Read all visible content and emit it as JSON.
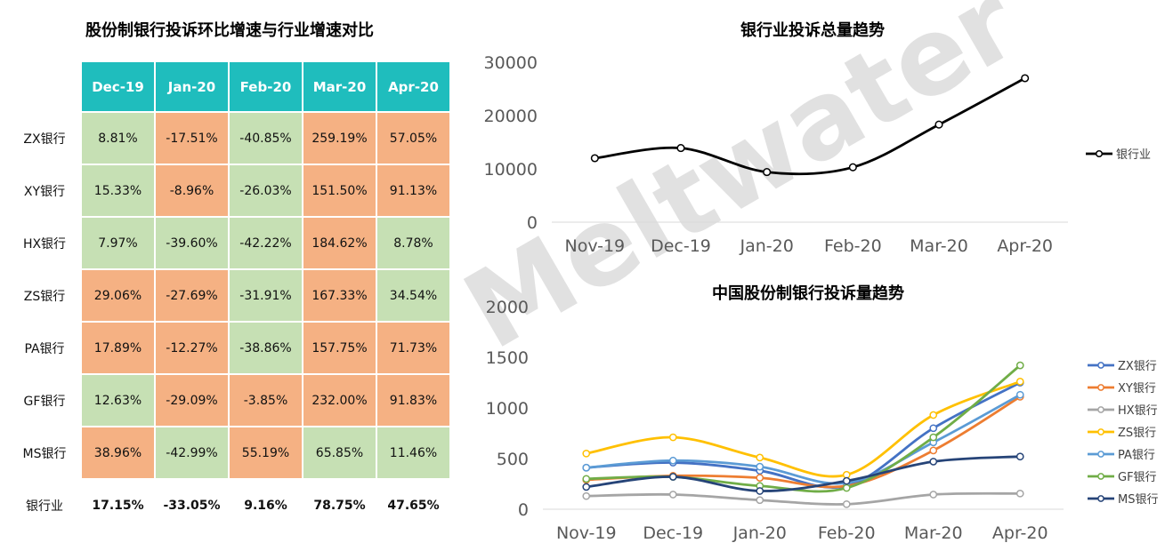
{
  "watermark": "Meltwater",
  "chart_data": [
    {
      "type": "table",
      "title": "股份制银行投诉环比增速与行业增速对比",
      "columns": [
        "Dec-19",
        "Jan-20",
        "Feb-20",
        "Mar-20",
        "Apr-20"
      ],
      "rows": [
        {
          "label": "ZX银行",
          "values": [
            "8.81%",
            "-17.51%",
            "-40.85%",
            "259.19%",
            "57.05%"
          ],
          "colors": [
            "neg",
            "pos",
            "neg",
            "pos",
            "pos"
          ]
        },
        {
          "label": "XY银行",
          "values": [
            "15.33%",
            "-8.96%",
            "-26.03%",
            "151.50%",
            "91.13%"
          ],
          "colors": [
            "neg",
            "pos",
            "neg",
            "pos",
            "pos"
          ]
        },
        {
          "label": "HX银行",
          "values": [
            "7.97%",
            "-39.60%",
            "-42.22%",
            "184.62%",
            "8.78%"
          ],
          "colors": [
            "neg",
            "neg",
            "neg",
            "pos",
            "neg"
          ]
        },
        {
          "label": "ZS银行",
          "values": [
            "29.06%",
            "-27.69%",
            "-31.91%",
            "167.33%",
            "34.54%"
          ],
          "colors": [
            "pos",
            "pos",
            "neg",
            "pos",
            "neg"
          ]
        },
        {
          "label": "PA银行",
          "values": [
            "17.89%",
            "-12.27%",
            "-38.86%",
            "157.75%",
            "71.73%"
          ],
          "colors": [
            "pos",
            "pos",
            "neg",
            "pos",
            "pos"
          ]
        },
        {
          "label": "GF银行",
          "values": [
            "12.63%",
            "-29.09%",
            "-3.85%",
            "232.00%",
            "91.83%"
          ],
          "colors": [
            "neg",
            "pos",
            "pos",
            "pos",
            "pos"
          ]
        },
        {
          "label": "MS银行",
          "values": [
            "38.96%",
            "-42.99%",
            "55.19%",
            "65.85%",
            "11.46%"
          ],
          "colors": [
            "pos",
            "neg",
            "pos",
            "neg",
            "neg"
          ]
        }
      ],
      "total": {
        "label": "银行业",
        "values": [
          "17.15%",
          "-33.05%",
          "9.16%",
          "78.75%",
          "47.65%"
        ]
      },
      "colors": {
        "pos": "#f5b183",
        "neg": "#c6e0b4",
        "header": "#1fbdbd"
      }
    },
    {
      "type": "line",
      "title": "银行业投诉总量趋势",
      "categories": [
        "Nov-19",
        "Dec-19",
        "Jan-20",
        "Feb-20",
        "Mar-20",
        "Apr-20"
      ],
      "ylim": [
        0,
        30000
      ],
      "yticks": [
        "0",
        "10000",
        "20000",
        "30000"
      ],
      "legend": "right",
      "series": [
        {
          "name": "银行业",
          "color": "#000000",
          "values": [
            12000,
            13900,
            9400,
            10300,
            18300,
            27000
          ]
        }
      ]
    },
    {
      "type": "line",
      "title": "中国股份制银行投诉量趋势",
      "categories": [
        "Nov-19",
        "Dec-19",
        "Jan-20",
        "Feb-20",
        "Mar-20",
        "Apr-20"
      ],
      "ylim": [
        0,
        2000
      ],
      "yticks": [
        "0",
        "500",
        "1000",
        "1500",
        "2000"
      ],
      "legend": "right",
      "series": [
        {
          "name": "ZX银行",
          "color": "#4472c4",
          "values": [
            410,
            460,
            380,
            230,
            800,
            1250
          ]
        },
        {
          "name": "XY银行",
          "color": "#ed7d31",
          "values": [
            290,
            330,
            310,
            230,
            580,
            1110
          ]
        },
        {
          "name": "HX银行",
          "color": "#a5a5a5",
          "values": [
            130,
            145,
            90,
            50,
            145,
            155
          ]
        },
        {
          "name": "ZS银行",
          "color": "#ffc000",
          "values": [
            550,
            710,
            510,
            340,
            930,
            1260
          ]
        },
        {
          "name": "PA银行",
          "color": "#5b9bd5",
          "values": [
            410,
            480,
            420,
            260,
            660,
            1130
          ]
        },
        {
          "name": "GF银行",
          "color": "#70ad47",
          "values": [
            300,
            320,
            230,
            210,
            710,
            1420
          ]
        },
        {
          "name": "MS银行",
          "color": "#264478",
          "values": [
            220,
            320,
            180,
            280,
            470,
            520
          ]
        }
      ]
    }
  ]
}
